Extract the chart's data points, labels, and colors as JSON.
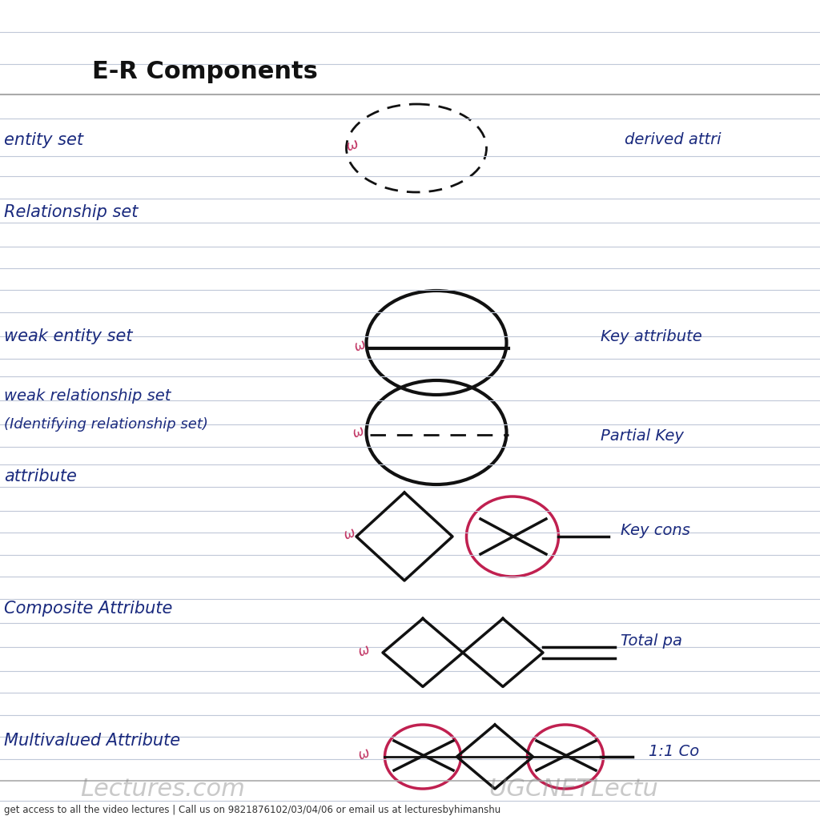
{
  "title": "E-R Components",
  "background_color": "#ffffff",
  "line_color": "#c0c8d8",
  "text_color_blue": "#1a2a7e",
  "shape_color": "#111111",
  "red_color": "#c02050",
  "pink_color": "#c03060",
  "footer": "get access to all the video lectures | Call us on 9821876102/03/04/06 or email us at lecturesbyhimanshu",
  "watermark1": "Lectures.com",
  "watermark2": "UGCNETLectu"
}
